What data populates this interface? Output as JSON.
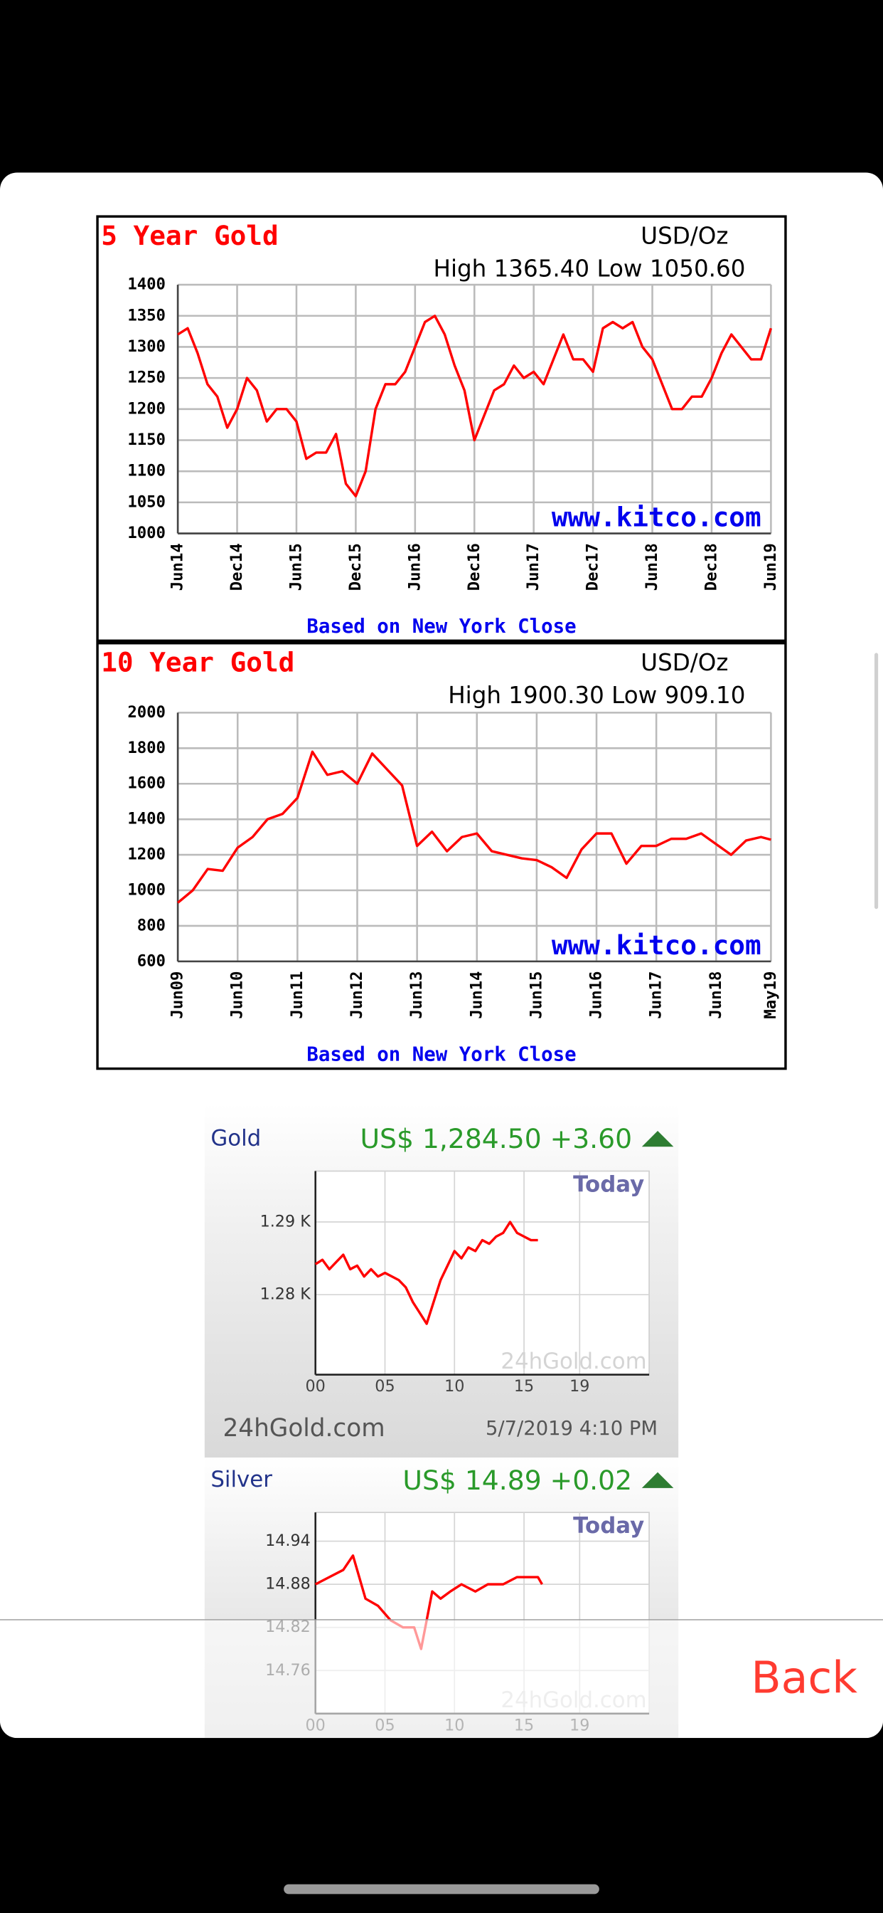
{
  "chart_data": [
    {
      "type": "line",
      "title": "5 Year Gold",
      "unit": "USD/Oz",
      "subtitle": "High 1365.40 Low 1050.60",
      "watermark": "www.kitco.com",
      "note": "Based on New York Close",
      "x": [
        "Jun14",
        "Jul14",
        "Aug14",
        "Sep14",
        "Oct14",
        "Nov14",
        "Dec14",
        "Jan15",
        "Feb15",
        "Mar15",
        "Apr15",
        "May15",
        "Jun15",
        "Jul15",
        "Aug15",
        "Sep15",
        "Oct15",
        "Nov15",
        "Dec15",
        "Jan16",
        "Feb16",
        "Mar16",
        "Apr16",
        "May16",
        "Jun16",
        "Jul16",
        "Aug16",
        "Sep16",
        "Oct16",
        "Nov16",
        "Dec16",
        "Jan17",
        "Feb17",
        "Mar17",
        "Apr17",
        "May17",
        "Jun17",
        "Jul17",
        "Aug17",
        "Sep17",
        "Oct17",
        "Nov17",
        "Dec17",
        "Jan18",
        "Feb18",
        "Mar18",
        "Apr18",
        "May18",
        "Jun18",
        "Jul18",
        "Aug18",
        "Sep18",
        "Oct18",
        "Nov18",
        "Dec18",
        "Jan19",
        "Feb19",
        "Mar19",
        "Apr19",
        "May19",
        "Jun19"
      ],
      "series": [
        {
          "color": "#ff0000",
          "values": [
            1320,
            1330,
            1290,
            1240,
            1220,
            1170,
            1200,
            1250,
            1230,
            1180,
            1200,
            1200,
            1180,
            1120,
            1130,
            1130,
            1160,
            1080,
            1060,
            1100,
            1200,
            1240,
            1240,
            1260,
            1300,
            1340,
            1350,
            1320,
            1270,
            1230,
            1150,
            1190,
            1230,
            1240,
            1270,
            1250,
            1260,
            1240,
            1280,
            1320,
            1280,
            1280,
            1260,
            1330,
            1340,
            1330,
            1340,
            1300,
            1280,
            1240,
            1200,
            1200,
            1220,
            1220,
            1250,
            1290,
            1320,
            1300,
            1280,
            1280,
            1330
          ]
        }
      ],
      "xticks": [
        "Jun14",
        "Dec14",
        "Jun15",
        "Dec15",
        "Jun16",
        "Dec16",
        "Jun17",
        "Dec17",
        "Jun18",
        "Dec18",
        "Jun19"
      ],
      "ylim": [
        1000,
        1400
      ],
      "yticks": [
        1000,
        1050,
        1100,
        1150,
        1200,
        1250,
        1300,
        1350,
        1400
      ],
      "grid": true
    },
    {
      "type": "line",
      "title": "10 Year Gold",
      "unit": "USD/Oz",
      "subtitle": "High 1900.30 Low 909.10",
      "watermark": "www.kitco.com",
      "note": "Based on New York Close",
      "x": [
        "Jun09",
        "Sep09",
        "Dec09",
        "Mar10",
        "Jun10",
        "Sep10",
        "Dec10",
        "Mar11",
        "Jun11",
        "Sep11",
        "Dec11",
        "Mar12",
        "Jun12",
        "Sep12",
        "Dec12",
        "Mar13",
        "Jun13",
        "Sep13",
        "Dec13",
        "Mar14",
        "Jun14",
        "Sep14",
        "Dec14",
        "Mar15",
        "Jun15",
        "Sep15",
        "Dec15",
        "Mar16",
        "Jun16",
        "Sep16",
        "Dec16",
        "Mar17",
        "Jun17",
        "Sep17",
        "Dec17",
        "Mar18",
        "Jun18",
        "Sep18",
        "Dec18",
        "Mar19",
        "May19"
      ],
      "series": [
        {
          "color": "#ff0000",
          "values": [
            930,
            1000,
            1120,
            1110,
            1240,
            1300,
            1400,
            1430,
            1520,
            1780,
            1650,
            1670,
            1600,
            1770,
            1680,
            1590,
            1250,
            1330,
            1220,
            1300,
            1320,
            1220,
            1200,
            1180,
            1170,
            1130,
            1070,
            1230,
            1320,
            1320,
            1150,
            1250,
            1250,
            1290,
            1290,
            1320,
            1260,
            1200,
            1280,
            1300,
            1285
          ]
        }
      ],
      "xticks": [
        "Jun09",
        "Jun10",
        "Jun11",
        "Jun12",
        "Jun13",
        "Jun14",
        "Jun15",
        "Jun16",
        "Jun17",
        "Jun18",
        "May19"
      ],
      "ylim": [
        600,
        2000
      ],
      "yticks": [
        600,
        800,
        1000,
        1200,
        1400,
        1600,
        1800,
        2000
      ],
      "grid": true
    },
    {
      "type": "line",
      "title": "Gold",
      "price": "US$ 1,284.50 +3.60",
      "period": "Today",
      "watermark": "24hGold.com",
      "source": "24hGold.com",
      "timestamp": "5/7/2019 4:10 PM",
      "x": [
        0,
        0.5,
        1,
        1.5,
        2,
        2.5,
        3,
        3.5,
        4,
        4.5,
        5,
        5.5,
        6,
        6.5,
        7,
        7.5,
        8,
        8.5,
        9,
        9.5,
        10,
        10.5,
        11,
        11.5,
        12,
        12.5,
        13,
        13.5,
        14,
        14.5,
        15,
        15.5,
        16
      ],
      "series": [
        {
          "color": "#ff0000",
          "values": [
            1284.2,
            1284.8,
            1283.5,
            1284.5,
            1285.5,
            1283.5,
            1284,
            1282.5,
            1283.5,
            1282.5,
            1283,
            1282.5,
            1282,
            1281,
            1279,
            1277.5,
            1276,
            1279,
            1282,
            1284,
            1286,
            1285,
            1286.5,
            1286,
            1287.5,
            1287,
            1288,
            1288.5,
            1290,
            1288.5,
            1288,
            1287.5,
            1287.5
          ]
        }
      ],
      "xlim": [
        0,
        24
      ],
      "xticks": [
        {
          "value": 0,
          "label": "00"
        },
        {
          "value": 5,
          "label": "05"
        },
        10,
        15,
        19
      ],
      "ylim": [
        1269,
        1297
      ],
      "yticks": [
        {
          "value": 1290,
          "label": "1.29 K"
        },
        {
          "value": 1280,
          "label": "1.28 K"
        }
      ],
      "grid": true
    },
    {
      "type": "line",
      "title": "Silver",
      "price": "US$ 14.89 +0.02",
      "period": "Today",
      "watermark": "24hGold.com",
      "x": [
        0,
        1,
        2,
        2.7,
        3.6,
        4.5,
        5.4,
        6.3,
        7.1,
        7.6,
        8.4,
        9,
        9.7,
        10.5,
        11.5,
        12.4,
        13.5,
        14.5,
        15,
        16,
        16.3
      ],
      "series": [
        {
          "color": "#ff0000",
          "values": [
            14.88,
            14.89,
            14.9,
            14.92,
            14.86,
            14.85,
            14.83,
            14.82,
            14.82,
            14.79,
            14.87,
            14.86,
            14.87,
            14.88,
            14.87,
            14.88,
            14.88,
            14.89,
            14.89,
            14.89,
            14.88
          ]
        }
      ],
      "xlim": [
        0,
        24
      ],
      "xticks": [
        {
          "value": 0,
          "label": "00"
        },
        {
          "value": 5,
          "label": "05"
        },
        10,
        15,
        19
      ],
      "ylim": [
        14.7,
        14.98
      ],
      "yticks": [
        14.94,
        14.88,
        14.82,
        14.76
      ],
      "grid": true
    }
  ],
  "screen": {
    "back_button": "Back"
  }
}
